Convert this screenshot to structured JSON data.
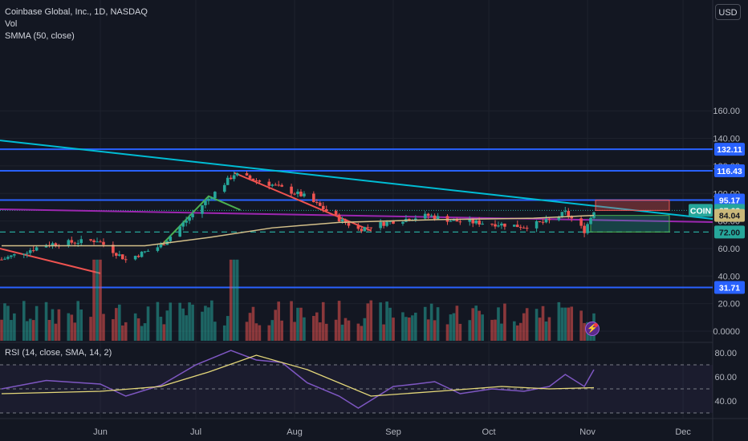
{
  "header": {
    "symbol_line": "Coinbase Global, Inc., 1D, NASDAQ",
    "vol_label": "Vol",
    "smma_label": "SMMA (50, close)",
    "currency_button": "USD"
  },
  "rsi_header": "RSI (14, close, SMA, 14, 2)",
  "colors": {
    "background": "#131722",
    "up": "#26a69a",
    "down": "#ef5350",
    "blue_level": "#2962ff",
    "trend_cyan": "#00bcd4",
    "purple_line": "#9c27b0",
    "smma": "#d4c08a",
    "rsi_line": "#7e57c2",
    "rsi_ma": "#e5d87a"
  },
  "icons": [
    "lightning-bolt-icon"
  ],
  "chart_data": [
    {
      "type": "candlestick",
      "title": "Coinbase Global, Inc., 1D, NASDAQ",
      "ylim": [
        0,
        170
      ],
      "y_ticks": [
        "160.00",
        "140.00",
        "120.00",
        "100.00",
        "80.00",
        "60.00",
        "40.00",
        "20.00",
        "0.0000"
      ],
      "x_ticks": [
        "Jun",
        "Jul",
        "Aug",
        "Sep",
        "Oct",
        "Nov",
        "Dec"
      ],
      "price_labels": [
        {
          "text": "132.11",
          "value": 132.11,
          "kind": "level"
        },
        {
          "text": "116.43",
          "value": 116.43,
          "kind": "level"
        },
        {
          "text": "95.17",
          "value": 95.17,
          "kind": "level"
        },
        {
          "text": "COIN",
          "value": 87.68,
          "kind": "symbol"
        },
        {
          "text": "87.68",
          "value": 87.68,
          "kind": "last"
        },
        {
          "text": "84.04",
          "value": 84.04,
          "kind": "smma"
        },
        {
          "text": "72.00",
          "value": 72.0,
          "kind": "support"
        },
        {
          "text": "31.71",
          "value": 31.71,
          "kind": "level"
        }
      ],
      "horizontal_levels": [
        132.11,
        116.43,
        95.17,
        31.71
      ],
      "support_dashed": 72.0,
      "ohlc_pivots": [
        [
          "2023-05-01",
          52
        ],
        [
          "2023-05-15",
          63
        ],
        [
          "2023-05-31",
          66
        ],
        [
          "2023-06-09",
          52
        ],
        [
          "2023-06-20",
          62
        ],
        [
          "2023-06-30",
          85
        ],
        [
          "2023-07-13",
          114
        ],
        [
          "2023-07-24",
          107
        ],
        [
          "2023-08-04",
          98
        ],
        [
          "2023-08-16",
          80
        ],
        [
          "2023-08-21",
          74
        ],
        [
          "2023-09-01",
          80
        ],
        [
          "2023-09-12",
          84
        ],
        [
          "2023-09-20",
          80
        ],
        [
          "2023-10-03",
          78
        ],
        [
          "2023-10-12",
          76
        ],
        [
          "2023-10-20",
          80
        ],
        [
          "2023-10-25",
          86
        ],
        [
          "2023-10-31",
          73
        ],
        [
          "2023-11-03",
          87.68
        ]
      ],
      "series": [
        {
          "name": "SMMA (50, close)",
          "points": [
            [
              "2023-05-01",
              62
            ],
            [
              "2023-06-15",
              62
            ],
            [
              "2023-07-05",
              68
            ],
            [
              "2023-07-25",
              75
            ],
            [
              "2023-08-15",
              79
            ],
            [
              "2023-09-15",
              81
            ],
            [
              "2023-10-15",
              82
            ],
            [
              "2023-11-03",
              84.04
            ]
          ]
        }
      ],
      "volume_spikes": [
        "2023-05-31",
        "2023-07-13"
      ],
      "volume_ylim": [
        0,
        25
      ]
    },
    {
      "type": "line",
      "title": "RSI (14, close, SMA, 14, 2)",
      "ylim": [
        25,
        88
      ],
      "y_ticks": [
        "80.00",
        "60.00",
        "40.00"
      ],
      "band": [
        30,
        70
      ],
      "series": [
        {
          "name": "RSI",
          "points": [
            [
              "2023-05-01",
              50
            ],
            [
              "2023-05-15",
              57
            ],
            [
              "2023-06-01",
              54
            ],
            [
              "2023-06-09",
              44
            ],
            [
              "2023-06-20",
              53
            ],
            [
              "2023-07-01",
              70
            ],
            [
              "2023-07-12",
              82
            ],
            [
              "2023-07-20",
              74
            ],
            [
              "2023-07-28",
              72
            ],
            [
              "2023-08-05",
              55
            ],
            [
              "2023-08-15",
              44
            ],
            [
              "2023-08-21",
              34
            ],
            [
              "2023-09-01",
              52
            ],
            [
              "2023-09-08",
              54
            ],
            [
              "2023-09-14",
              56
            ],
            [
              "2023-09-22",
              46
            ],
            [
              "2023-10-02",
              50
            ],
            [
              "2023-10-12",
              48
            ],
            [
              "2023-10-20",
              52
            ],
            [
              "2023-10-25",
              62
            ],
            [
              "2023-10-31",
              52
            ],
            [
              "2023-11-03",
              66
            ]
          ]
        },
        {
          "name": "RSI-based MA",
          "points": [
            [
              "2023-05-01",
              46
            ],
            [
              "2023-06-01",
              48
            ],
            [
              "2023-06-20",
              52
            ],
            [
              "2023-07-05",
              64
            ],
            [
              "2023-07-20",
              78
            ],
            [
              "2023-08-05",
              66
            ],
            [
              "2023-08-25",
              44
            ],
            [
              "2023-09-15",
              48
            ],
            [
              "2023-10-05",
              52
            ],
            [
              "2023-10-20",
              50
            ],
            [
              "2023-11-03",
              51
            ]
          ]
        }
      ]
    }
  ]
}
